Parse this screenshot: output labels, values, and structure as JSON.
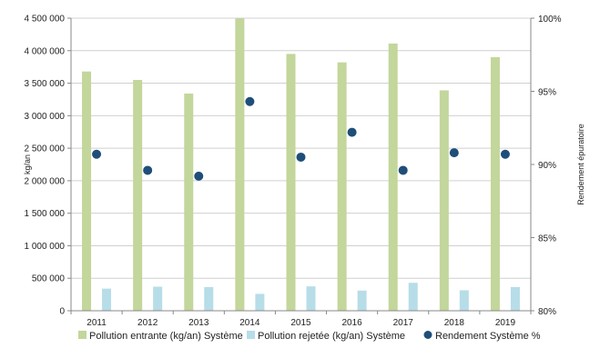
{
  "chart_data": {
    "type": "bar",
    "categories": [
      "2011",
      "2012",
      "2013",
      "2014",
      "2015",
      "2016",
      "2017",
      "2018",
      "2019"
    ],
    "series": [
      {
        "name": "Pollution entrante (kg/an) Système",
        "type": "bar",
        "axis": "left",
        "color": "#c3d69b",
        "values": [
          3680000,
          3550000,
          3340000,
          4500000,
          3950000,
          3820000,
          4110000,
          3390000,
          3900000
        ]
      },
      {
        "name": "Pollution rejetée (kg/an) Système",
        "type": "bar",
        "axis": "left",
        "color": "#b7dde8",
        "values": [
          340000,
          370000,
          365000,
          260000,
          375000,
          310000,
          430000,
          315000,
          365000
        ]
      },
      {
        "name": "Rendement Système %",
        "type": "scatter",
        "axis": "right",
        "color": "#1f4e79",
        "values": [
          90.7,
          89.6,
          89.2,
          94.3,
          90.5,
          92.2,
          89.6,
          90.8,
          90.7
        ]
      }
    ],
    "ylabel": "kg/an",
    "y2label": "Rendement épuratoire",
    "ylim": [
      0,
      4500000
    ],
    "y2lim": [
      80,
      100
    ],
    "yticks": [
      "0",
      "500 000",
      "1 000 000",
      "1 500 000",
      "2 000 000",
      "2 500 000",
      "3 000 000",
      "3 500 000",
      "4 000 000",
      "4 500 000"
    ],
    "y2ticks": [
      "80%",
      "85%",
      "90%",
      "95%",
      "100%"
    ],
    "grid": true,
    "legend_position": "bottom"
  }
}
